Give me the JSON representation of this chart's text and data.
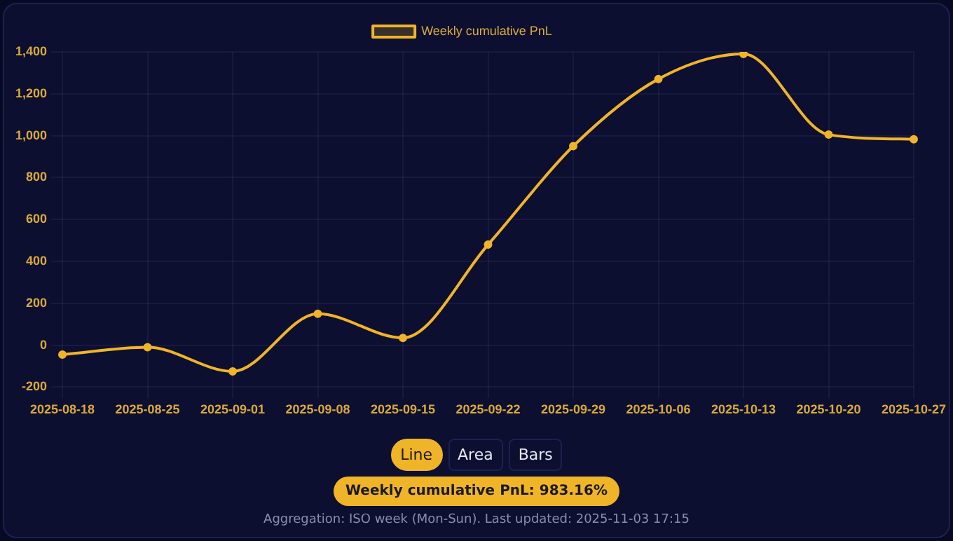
{
  "chart_data": {
    "type": "line",
    "categories": [
      "2025-08-18",
      "2025-08-25",
      "2025-09-01",
      "2025-09-08",
      "2025-09-15",
      "2025-09-22",
      "2025-09-29",
      "2025-10-06",
      "2025-10-13",
      "2025-10-20",
      "2025-10-27"
    ],
    "series": [
      {
        "name": "Weekly cumulative PnL",
        "color": "#f0b429",
        "values": [
          -45,
          -10,
          -125,
          150,
          35,
          480,
          950,
          1270,
          1390,
          1005,
          983.16
        ]
      }
    ],
    "ylim": [
      -200,
      1400
    ],
    "yticks": [
      {
        "value": -200,
        "label": "-200"
      },
      {
        "value": 0,
        "label": "0"
      },
      {
        "value": 200,
        "label": "200"
      },
      {
        "value": 400,
        "label": "400"
      },
      {
        "value": 600,
        "label": "600"
      },
      {
        "value": 800,
        "label": "800"
      },
      {
        "value": 1000,
        "label": "1,000"
      },
      {
        "value": 1200,
        "label": "1,200"
      },
      {
        "value": 1400,
        "label": "1,400"
      }
    ],
    "grid": true,
    "legend": "top",
    "marker": "circle",
    "line_style": "solid",
    "annotations": [
      "Line",
      "Area",
      "Bars",
      "Weekly cumulative PnL: 983.16%",
      "Aggregation: ISO week (Mon-Sun). Last updated: 2025-11-03 17:15"
    ]
  }
}
